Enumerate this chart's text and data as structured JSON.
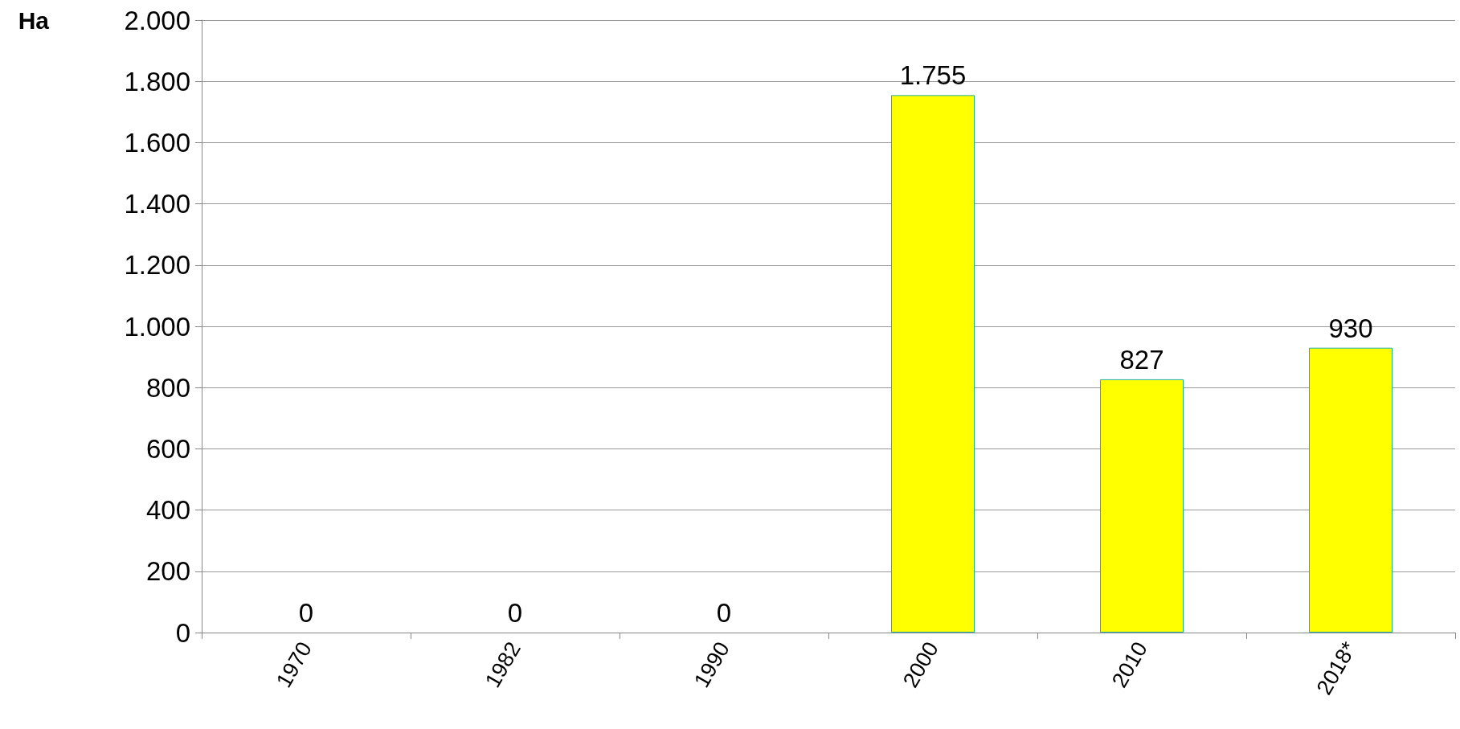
{
  "chart_data": {
    "type": "bar",
    "ylabel": "Ha",
    "categories": [
      "1970",
      "1982",
      "1990",
      "2000",
      "2010",
      "2018*"
    ],
    "values": [
      0,
      0,
      0,
      1755,
      827,
      930
    ],
    "value_labels": [
      "0",
      "0",
      "0",
      "1.755",
      "827",
      "930"
    ],
    "color": "#ffff00",
    "ylim": [
      0,
      2000
    ],
    "yticks": [
      {
        "value": 0,
        "label": "0"
      },
      {
        "value": 200,
        "label": "200"
      },
      {
        "value": 400,
        "label": "400"
      },
      {
        "value": 600,
        "label": "600"
      },
      {
        "value": 800,
        "label": "800"
      },
      {
        "value": 1000,
        "label": "1.000"
      },
      {
        "value": 1200,
        "label": "1.200"
      },
      {
        "value": 1400,
        "label": "1.400"
      },
      {
        "value": 1600,
        "label": "1.600"
      },
      {
        "value": 1800,
        "label": "1.800"
      },
      {
        "value": 2000,
        "label": "2.000"
      }
    ],
    "grid": "y"
  }
}
